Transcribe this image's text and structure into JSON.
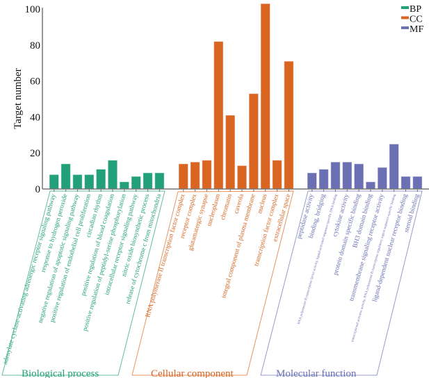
{
  "chart_data": {
    "type": "bar",
    "title": "",
    "xlabel": "",
    "ylabel": "Target number",
    "ylim": [
      0,
      100
    ],
    "yticks": [
      0,
      20,
      40,
      60,
      80,
      100
    ],
    "legend": {
      "placement": "top-right",
      "entries": [
        "BP",
        "CC",
        "MF"
      ]
    },
    "colors": {
      "BP": "#22a07a",
      "CC": "#d96520",
      "MF": "#6b70b4"
    },
    "groups": [
      {
        "key": "BP",
        "name": "Biological process",
        "categories": [
          "adenylate cyclase-activating adrenergic receptor signaling pathway",
          "response to hydrogen peroxide",
          "negative regulation of apoptotic signaling pathway",
          "positive regulation of endothelial cell proliferation",
          "circadian rhythm",
          "positive regulation of blood coagulation",
          "positive regulation of peptidyl-serine phosphorylation",
          "intracellular receptor signaling pathway",
          "nitric oxide biosynthetic process",
          "release of cytochrome c from mitochondria"
        ],
        "values": [
          8,
          14,
          8,
          8,
          11,
          16,
          4,
          7,
          9,
          9
        ]
      },
      {
        "key": "CC",
        "name": "Cellular component",
        "categories": [
          "RNA polymerase II transcription factor complex",
          "receptor complex",
          "glutamatergic synapse",
          "nucleoplasm",
          "chromatin",
          "caveola",
          "integral component of plasma membrane",
          "nucleus",
          "transcription factor complex",
          "extracellular space"
        ],
        "values": [
          14,
          15,
          16,
          82,
          41,
          13,
          53,
          103,
          16,
          71
        ]
      },
      {
        "key": "MF",
        "name": "Molecular function",
        "categories": [
          "peptidase activity",
          "binding, bridging",
          "RNA polymerase II transcription factor activity, ligand-activated sequence-specific DNA binding",
          "cytokine activity",
          "protein domain specific binding",
          "BH3 domain binding",
          "transmembrane signaling receptor activity",
          "transcriptional activator activity, RNA polymerase II transcription regulatory region sequence-specific binding",
          "ligand-dependent nuclear receptor binding",
          "steroid binding"
        ],
        "values": [
          9,
          11,
          15,
          15,
          14,
          4,
          12,
          25,
          7,
          7
        ]
      }
    ]
  }
}
